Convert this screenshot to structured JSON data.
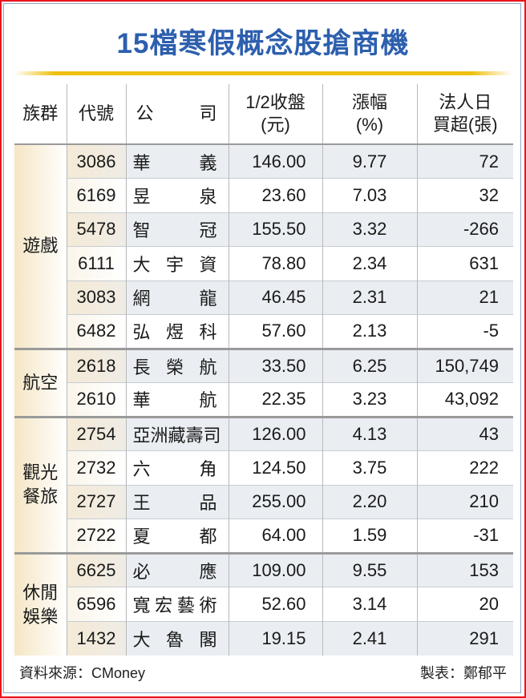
{
  "title": "15檔寒假概念股搶商機",
  "headers": {
    "group": "族群",
    "code": "代號",
    "company": "公　　司",
    "price_l1": "1/2收盤",
    "price_l2": "(元)",
    "change_l1": "漲幅",
    "change_l2": "(%)",
    "net_l1": "法人日",
    "net_l2": "買超(張)"
  },
  "groups": [
    {
      "name": "遊戲",
      "rows": [
        {
          "code": "3086",
          "company": "華義",
          "price": "146.00",
          "change": "9.77",
          "net": "72"
        },
        {
          "code": "6169",
          "company": "昱泉",
          "price": "23.60",
          "change": "7.03",
          "net": "32"
        },
        {
          "code": "5478",
          "company": "智冠",
          "price": "155.50",
          "change": "3.32",
          "net": "-266"
        },
        {
          "code": "6111",
          "company": "大宇資",
          "price": "78.80",
          "change": "2.34",
          "net": "631"
        },
        {
          "code": "3083",
          "company": "網龍",
          "price": "46.45",
          "change": "2.31",
          "net": "21"
        },
        {
          "code": "6482",
          "company": "弘煜科",
          "price": "57.60",
          "change": "2.13",
          "net": "-5"
        }
      ]
    },
    {
      "name": "航空",
      "rows": [
        {
          "code": "2618",
          "company": "長榮航",
          "price": "33.50",
          "change": "6.25",
          "net": "150,749"
        },
        {
          "code": "2610",
          "company": "華航",
          "price": "22.35",
          "change": "3.23",
          "net": "43,092"
        }
      ]
    },
    {
      "name": "觀光餐旅",
      "rows": [
        {
          "code": "2754",
          "company": "亞洲藏壽司",
          "price": "126.00",
          "change": "4.13",
          "net": "43"
        },
        {
          "code": "2732",
          "company": "六角",
          "price": "124.50",
          "change": "3.75",
          "net": "222"
        },
        {
          "code": "2727",
          "company": "王品",
          "price": "255.00",
          "change": "2.20",
          "net": "210"
        },
        {
          "code": "2722",
          "company": "夏都",
          "price": "64.00",
          "change": "1.59",
          "net": "-31"
        }
      ]
    },
    {
      "name": "休閒娛樂",
      "rows": [
        {
          "code": "6625",
          "company": "必應",
          "price": "109.00",
          "change": "9.55",
          "net": "153"
        },
        {
          "code": "6596",
          "company": "寬宏藝術",
          "price": "52.60",
          "change": "3.14",
          "net": "20"
        },
        {
          "code": "1432",
          "company": "大魯閣",
          "price": "19.15",
          "change": "2.41",
          "net": "291"
        }
      ]
    }
  ],
  "footer": {
    "source": "資料來源：CMoney",
    "maker": "製表：鄭郁平"
  },
  "colors": {
    "title": "#2d5fae",
    "border": "#e8141c",
    "accent_line": "#eec010"
  }
}
